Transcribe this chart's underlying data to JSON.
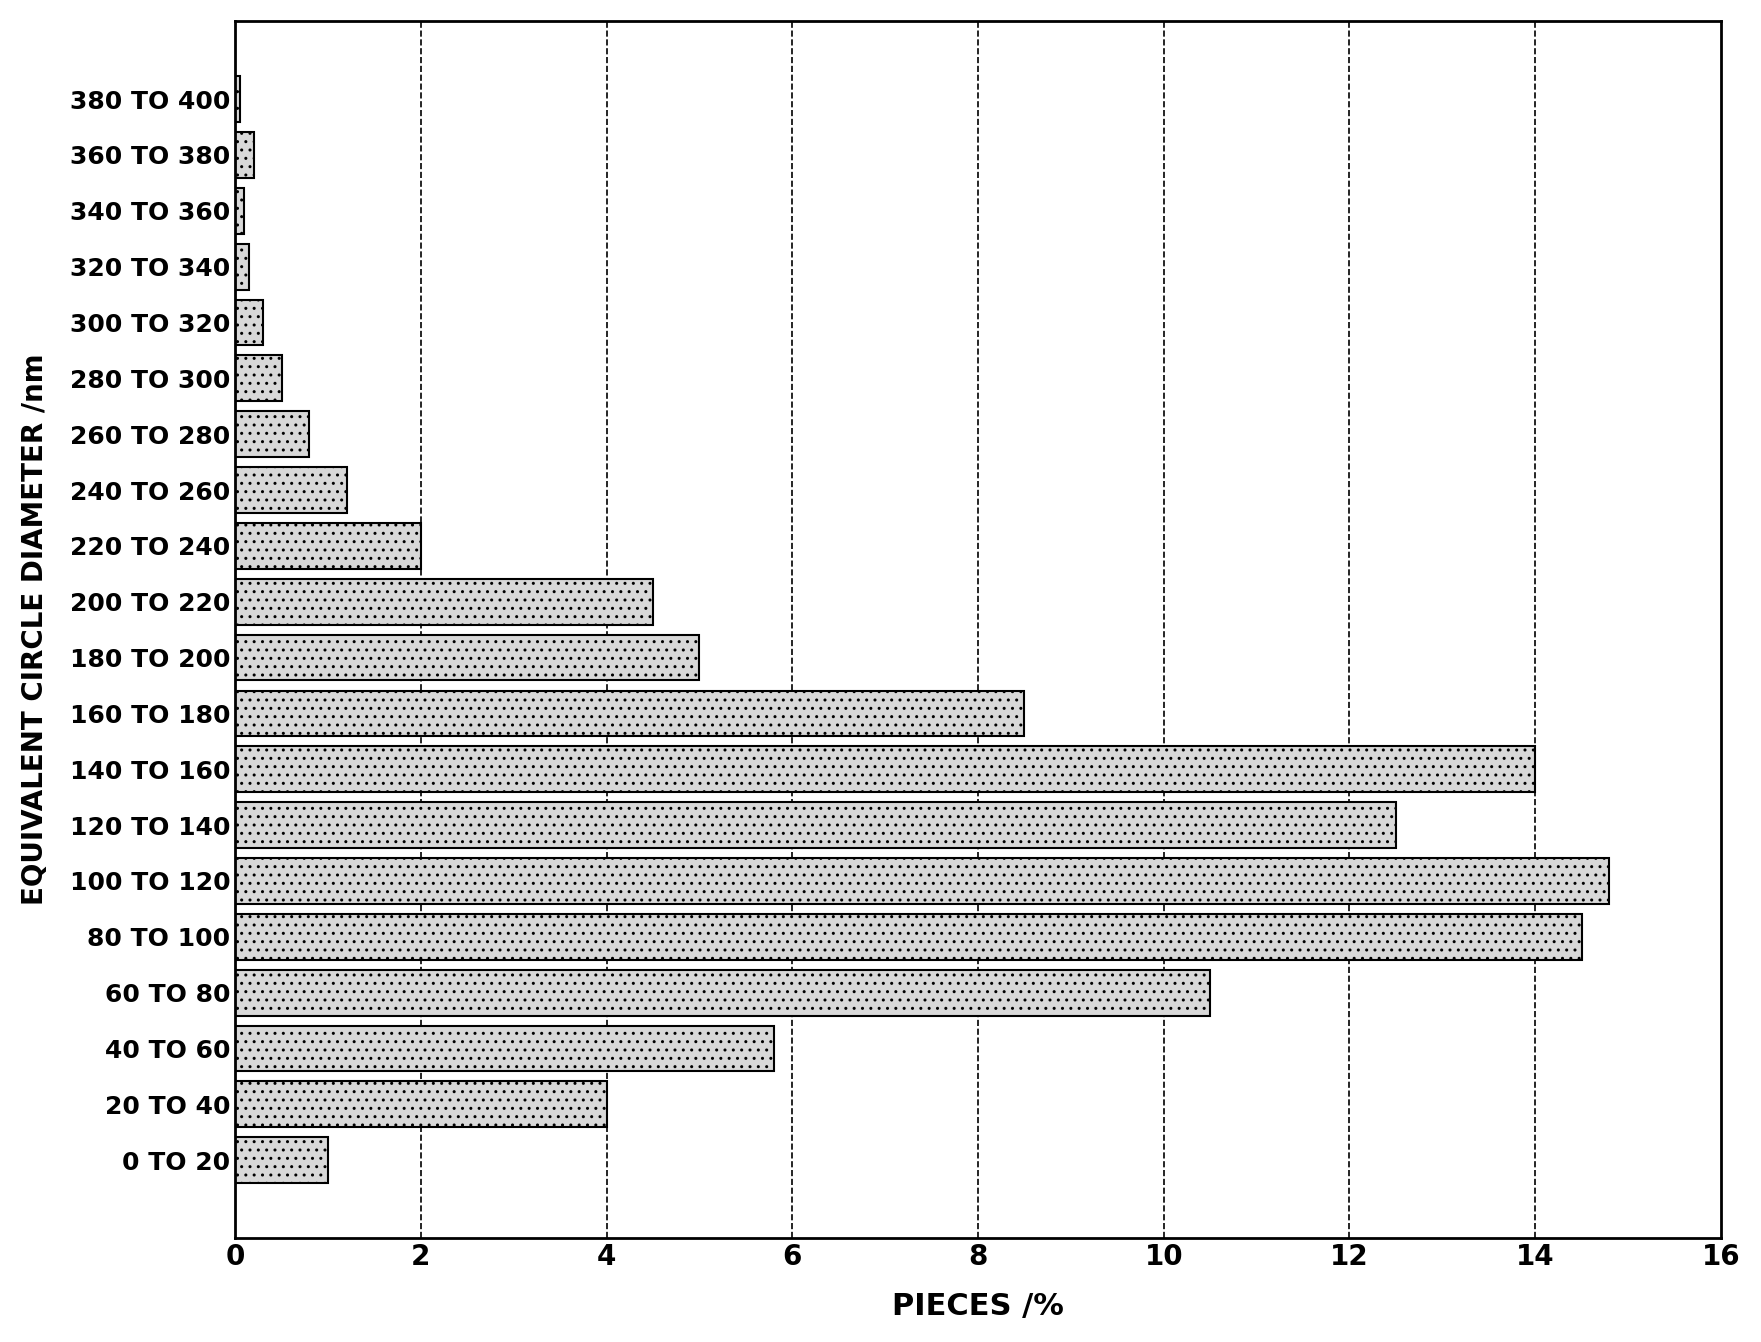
{
  "categories": [
    "380 TO 400",
    "360 TO 380",
    "340 TO 360",
    "320 TO 340",
    "300 TO 320",
    "280 TO 300",
    "260 TO 280",
    "240 TO 260",
    "220 TO 240",
    "200 TO 220",
    "180 TO 200",
    "160 TO 180",
    "140 TO 160",
    "120 TO 140",
    "100 TO 120",
    "80 TO 100",
    "60 TO 80",
    "40 TO 60",
    "20 TO 40",
    "0 TO 20"
  ],
  "values": [
    0.05,
    0.2,
    0.1,
    0.15,
    0.3,
    0.5,
    0.8,
    1.2,
    2.0,
    4.5,
    5.0,
    8.5,
    14.0,
    12.5,
    14.8,
    14.5,
    10.5,
    5.8,
    4.0,
    1.0
  ],
  "xlabel": "PIECES /%",
  "ylabel": "EQUIVALENT CIRCLE DIAMETER /nm",
  "xlim": [
    0,
    16
  ],
  "xticks": [
    0,
    2,
    4,
    6,
    8,
    10,
    12,
    14,
    16
  ],
  "bar_color": "#d8d8d8",
  "bar_edgecolor": "#000000",
  "background_color": "#ffffff",
  "xlabel_fontsize": 22,
  "ylabel_fontsize": 20,
  "tick_fontsize": 20,
  "ytick_fontsize": 18,
  "grid_lines": [
    2,
    4,
    6,
    8,
    10,
    12,
    14
  ]
}
